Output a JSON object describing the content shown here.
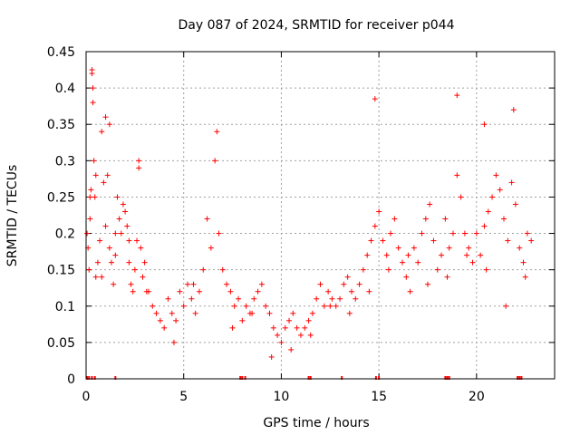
{
  "chart_data": {
    "type": "scatter",
    "title": "Day 087 of 2024, SRMTID for receiver p044",
    "xlabel": "GPS time / hours",
    "ylabel": "SRMTID / TECUs",
    "xlim": [
      0,
      24.0
    ],
    "ylim": [
      0,
      0.45
    ],
    "x_ticks": [
      0,
      5,
      10,
      15,
      20
    ],
    "x_tick_labels": [
      "0",
      "5",
      "10",
      "15",
      "20"
    ],
    "y_ticks": [
      0,
      0.05,
      0.1,
      0.15,
      0.2,
      0.25,
      0.3,
      0.35,
      0.4,
      0.45
    ],
    "y_tick_labels": [
      "0",
      "0.05",
      "0.1",
      "0.15",
      "0.2",
      "0.25",
      "0.3",
      "0.35",
      "0.4",
      "0.45"
    ],
    "grid": true,
    "marker": "+",
    "colors": {
      "series": "#ff0000",
      "grid": "#a0a0a0",
      "axis": "#000000"
    },
    "series": [
      {
        "name": "SRMTID",
        "x": [
          0.05,
          0.1,
          0.15,
          0.2,
          0.25,
          0.3,
          0.35,
          0.4,
          0.45,
          0.5,
          0.6,
          0.7,
          0.8,
          0.9,
          1.0,
          1.1,
          1.2,
          1.3,
          1.4,
          1.5,
          1.6,
          1.7,
          1.8,
          1.9,
          2.0,
          2.1,
          2.2,
          2.3,
          2.4,
          2.5,
          2.6,
          2.7,
          2.8,
          2.9,
          3.0,
          3.2,
          3.4,
          3.6,
          3.8,
          4.0,
          4.2,
          4.4,
          4.6,
          4.8,
          5.0,
          5.2,
          5.4,
          5.6,
          5.8,
          6.0,
          6.2,
          6.4,
          6.6,
          6.8,
          7.0,
          7.2,
          7.4,
          7.6,
          7.8,
          8.0,
          8.2,
          8.4,
          8.6,
          8.8,
          9.0,
          9.2,
          9.4,
          9.6,
          9.8,
          10.0,
          10.2,
          10.4,
          10.6,
          10.8,
          11.0,
          11.2,
          11.4,
          11.6,
          11.8,
          12.0,
          12.2,
          12.4,
          12.6,
          12.8,
          13.0,
          13.2,
          13.4,
          13.6,
          13.8,
          14.0,
          14.2,
          14.4,
          14.6,
          14.8,
          15.0,
          15.2,
          15.4,
          15.6,
          15.8,
          16.0,
          16.2,
          16.4,
          16.6,
          16.8,
          17.0,
          17.2,
          17.4,
          17.6,
          17.8,
          18.0,
          18.2,
          18.4,
          18.6,
          18.8,
          19.0,
          19.2,
          19.4,
          19.6,
          19.8,
          20.0,
          20.2,
          20.4,
          20.6,
          20.8,
          21.0,
          21.2,
          21.4,
          21.6,
          21.8,
          22.0,
          22.2,
          22.4,
          22.6,
          22.8,
          0.3,
          0.35,
          0.5,
          1.0,
          1.2,
          2.7,
          6.7,
          14.8,
          19.0,
          20.4,
          21.9,
          0.2,
          0.8,
          1.5,
          2.2,
          3.1,
          4.5,
          5.5,
          7.5,
          8.5,
          9.5,
          10.5,
          11.5,
          12.5,
          13.5,
          14.5,
          15.5,
          16.5,
          17.5,
          18.5,
          19.5,
          20.5,
          21.5,
          22.5
        ],
        "y": [
          0.2,
          0.18,
          0.15,
          0.22,
          0.26,
          0.42,
          0.38,
          0.3,
          0.25,
          0.14,
          0.16,
          0.19,
          0.34,
          0.27,
          0.21,
          0.28,
          0.18,
          0.16,
          0.13,
          0.17,
          0.25,
          0.22,
          0.2,
          0.24,
          0.23,
          0.21,
          0.16,
          0.13,
          0.12,
          0.15,
          0.19,
          0.29,
          0.18,
          0.14,
          0.16,
          0.12,
          0.1,
          0.09,
          0.08,
          0.07,
          0.11,
          0.09,
          0.08,
          0.12,
          0.1,
          0.13,
          0.11,
          0.09,
          0.12,
          0.15,
          0.22,
          0.18,
          0.3,
          0.2,
          0.15,
          0.13,
          0.12,
          0.1,
          0.11,
          0.08,
          0.1,
          0.09,
          0.11,
          0.12,
          0.13,
          0.1,
          0.09,
          0.07,
          0.06,
          0.05,
          0.07,
          0.08,
          0.09,
          0.07,
          0.06,
          0.07,
          0.08,
          0.09,
          0.11,
          0.13,
          0.1,
          0.12,
          0.11,
          0.1,
          0.11,
          0.13,
          0.14,
          0.12,
          0.11,
          0.13,
          0.15,
          0.17,
          0.19,
          0.21,
          0.23,
          0.19,
          0.17,
          0.2,
          0.22,
          0.18,
          0.16,
          0.14,
          0.12,
          0.18,
          0.16,
          0.2,
          0.22,
          0.24,
          0.19,
          0.15,
          0.17,
          0.22,
          0.18,
          0.2,
          0.28,
          0.25,
          0.2,
          0.18,
          0.16,
          0.2,
          0.17,
          0.21,
          0.23,
          0.25,
          0.28,
          0.26,
          0.22,
          0.19,
          0.27,
          0.24,
          0.18,
          0.16,
          0.2,
          0.19,
          0.425,
          0.4,
          0.28,
          0.36,
          0.35,
          0.3,
          0.34,
          0.385,
          0.39,
          0.35,
          0.37,
          0.25,
          0.14,
          0.2,
          0.19,
          0.12,
          0.05,
          0.13,
          0.07,
          0.09,
          0.03,
          0.04,
          0.06,
          0.1,
          0.09,
          0.12,
          0.15,
          0.17,
          0.13,
          0.14,
          0.17,
          0.15,
          0.1,
          0.14
        ]
      }
    ]
  }
}
